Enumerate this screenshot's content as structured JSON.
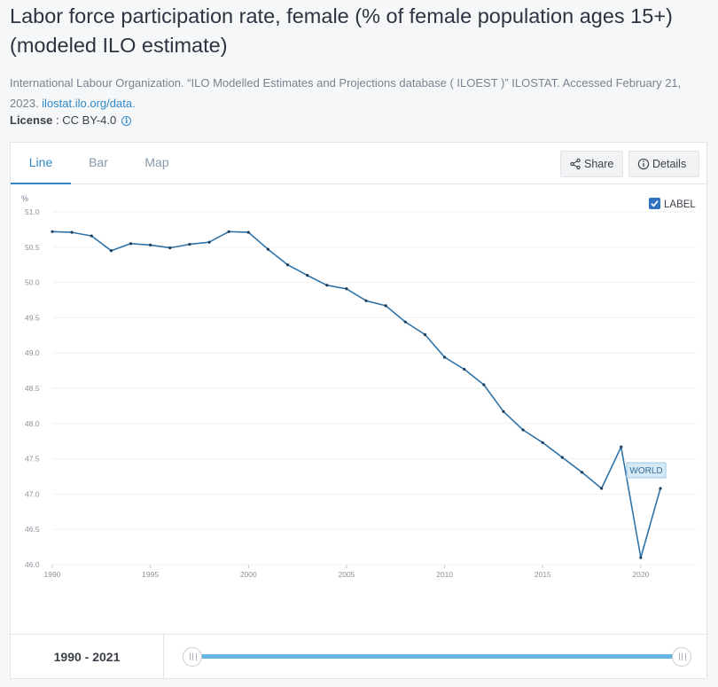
{
  "title": "Labor force participation rate, female (% of female population ages 15+) (modeled ILO estimate)",
  "source": {
    "text": "International Labour Organization. “ILO Modelled Estimates and Projections database ( ILOEST )” ILOSTAT. Accessed February 21, 2023.",
    "link": "ilostat.ilo.org/data."
  },
  "license": {
    "label": "License",
    "separator": " : ",
    "value": "CC BY-4.0",
    "icon": "info-icon"
  },
  "tabs": [
    {
      "label": "Line",
      "active": true
    },
    {
      "label": "Bar",
      "active": false
    },
    {
      "label": "Map",
      "active": false
    }
  ],
  "toolbar": {
    "share_label": "Share",
    "share_icon": "share-icon",
    "details_label": "Details",
    "details_icon": "info-icon"
  },
  "label_toggle": {
    "text": "LABEL",
    "checked": true
  },
  "range": {
    "label": "1990 - 2021",
    "start": 1990,
    "end": 2021
  },
  "colors": {
    "line": "#2f73a8",
    "accent": "#2f88c8",
    "slider": "#67b5e5",
    "series_label_bg": "#d6e9f7"
  },
  "chart_data": {
    "type": "line",
    "ylabel": "%",
    "ylim": [
      46.0,
      51.0
    ],
    "yticks": [
      "51.0",
      "50.5",
      "50.0",
      "49.5",
      "49.0",
      "48.5",
      "48.0",
      "47.5",
      "47.0",
      "46.5",
      "46.0"
    ],
    "xlim": [
      1990,
      2021
    ],
    "xticks": [
      "1990",
      "1995",
      "2000",
      "2005",
      "2010",
      "2015",
      "2020"
    ],
    "grid": true,
    "series": [
      {
        "name": "WORLD",
        "x": [
          1990,
          1991,
          1992,
          1993,
          1994,
          1995,
          1996,
          1997,
          1998,
          1999,
          2000,
          2001,
          2002,
          2003,
          2004,
          2005,
          2006,
          2007,
          2008,
          2009,
          2010,
          2011,
          2012,
          2013,
          2014,
          2015,
          2016,
          2017,
          2018,
          2019,
          2020,
          2021
        ],
        "values": [
          50.72,
          50.71,
          50.66,
          50.45,
          50.55,
          50.53,
          50.49,
          50.54,
          50.57,
          50.72,
          50.71,
          50.47,
          50.25,
          50.1,
          49.96,
          49.91,
          49.74,
          49.67,
          49.44,
          49.26,
          48.94,
          48.77,
          48.55,
          48.17,
          47.91,
          47.73,
          47.52,
          47.31,
          47.08,
          47.67,
          46.1,
          47.08
        ]
      }
    ]
  }
}
